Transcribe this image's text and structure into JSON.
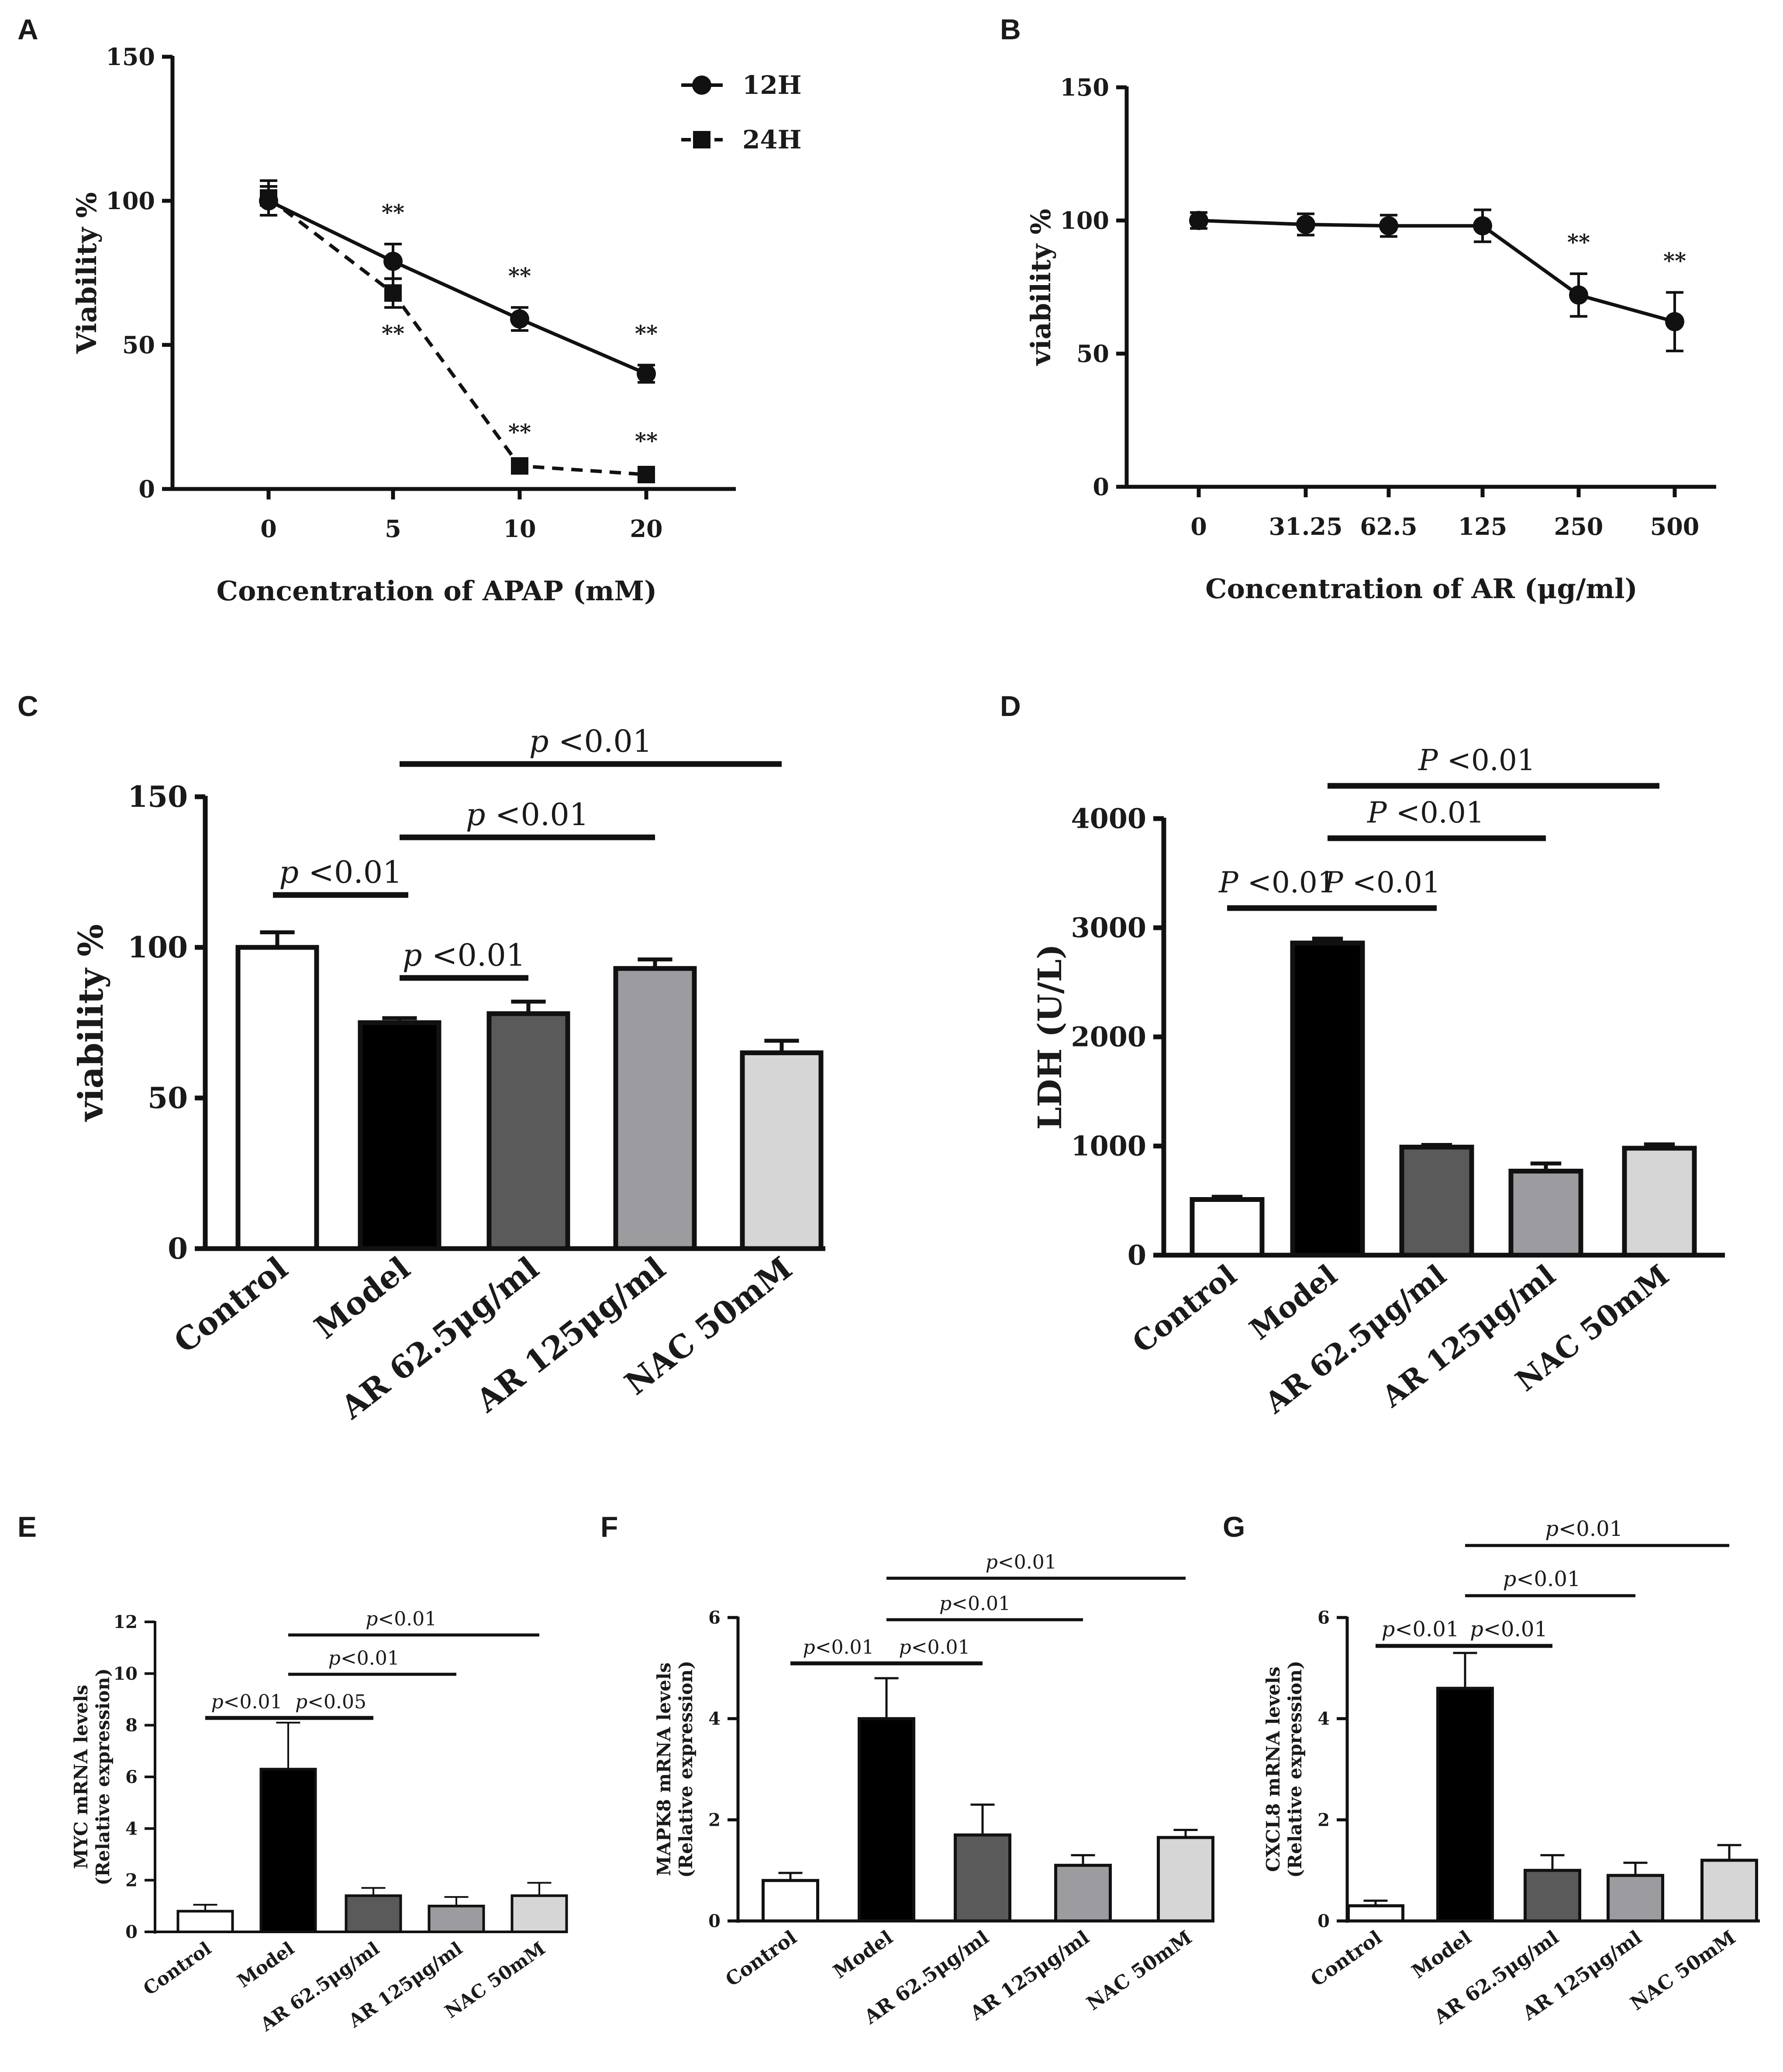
{
  "chart_data": [
    {
      "panel": "A",
      "type": "line",
      "xlabel": "Concentration of APAP (mM)",
      "ylabel": "Viability %",
      "categories": [
        "0",
        "5",
        "10",
        "20"
      ],
      "yticks": [
        "0",
        "50",
        "100",
        "150"
      ],
      "ylim": [
        0,
        150
      ],
      "series": [
        {
          "name": "12H",
          "values": [
            100,
            79,
            59,
            40
          ],
          "errors": [
            5,
            6,
            4,
            3
          ],
          "style": "solid-circle",
          "sig": [
            "",
            "**",
            "**",
            "**"
          ]
        },
        {
          "name": "24H",
          "values": [
            101,
            68,
            8,
            5
          ],
          "errors": [
            6,
            5,
            2,
            2
          ],
          "style": "dashed-square",
          "sig": [
            "",
            "**",
            "**",
            "**"
          ]
        }
      ],
      "legend": "top-right"
    },
    {
      "panel": "B",
      "type": "line",
      "xlabel": "Concentration of AR (μg/ml)",
      "ylabel": "viability %",
      "categories": [
        "0",
        "31.25",
        "62.5",
        "125",
        "250",
        "500"
      ],
      "yticks": [
        "0",
        "50",
        "100",
        "150"
      ],
      "ylim": [
        0,
        150
      ],
      "series": [
        {
          "name": "viability",
          "values": [
            100,
            98.5,
            98,
            98,
            72,
            62
          ],
          "errors": [
            3,
            4,
            4,
            6,
            8,
            11
          ],
          "sig": [
            "",
            "",
            "",
            "",
            "**",
            "**"
          ]
        }
      ]
    },
    {
      "panel": "C",
      "type": "bar",
      "ylabel": "viability %",
      "categories": [
        "Control",
        "Model",
        "AR 62.5μg/ml",
        "AR 125μg/ml",
        "NAC 50mM"
      ],
      "values": [
        100,
        75,
        78,
        93,
        65
      ],
      "errors": [
        5,
        1.5,
        4,
        3,
        4
      ],
      "colors": [
        "#ffffff",
        "#000000",
        "#5a5a5a",
        "#9c9ca0",
        "#d6d6d6"
      ],
      "yticks": [
        "0",
        "50",
        "100",
        "150"
      ],
      "ylim": [
        0,
        150
      ],
      "brackets": [
        {
          "from": 0,
          "to": 1,
          "text": "p <0.01",
          "level": 1
        },
        {
          "from": 1,
          "to": 2,
          "text": "p <0.01",
          "level": 0
        },
        {
          "from": 1,
          "to": 3,
          "text": "p <0.01",
          "level": 2
        },
        {
          "from": 1,
          "to": 4,
          "text": "p <0.01",
          "level": 3
        }
      ]
    },
    {
      "panel": "D",
      "type": "bar",
      "ylabel": "LDH (U/L)",
      "categories": [
        "Control",
        "Model",
        "AR 62.5μg/ml",
        "AR 125μg/ml",
        "NAC 50mM"
      ],
      "values": [
        510,
        2860,
        990,
        770,
        980
      ],
      "errors": [
        25,
        40,
        20,
        70,
        35
      ],
      "colors": [
        "#ffffff",
        "#000000",
        "#5a5a5a",
        "#9c9ca0",
        "#d6d6d6"
      ],
      "yticks": [
        "0",
        "1000",
        "2000",
        "3000",
        "4000"
      ],
      "ylim": [
        0,
        4000
      ],
      "brackets": [
        {
          "from": 0,
          "to": 1,
          "text": "P <0.01",
          "level": 0
        },
        {
          "from": 1,
          "to": 2,
          "text": "P <0.01",
          "level": 0
        },
        {
          "from": 1,
          "to": 3,
          "text": "P <0.01",
          "level": 1
        },
        {
          "from": 1,
          "to": 4,
          "text": "P <0.01",
          "level": 2
        }
      ]
    },
    {
      "panel": "E",
      "type": "bar",
      "ylabel": "MYC mRNA levels",
      "ylabel2": "(Relative expression)",
      "categories": [
        "Control",
        "Model",
        "AR 62.5μg/ml",
        "AR 125μg/ml",
        "NAC 50mM"
      ],
      "values": [
        0.8,
        6.3,
        1.4,
        1.0,
        1.4
      ],
      "errors": [
        0.25,
        1.8,
        0.3,
        0.35,
        0.5
      ],
      "colors": [
        "#ffffff",
        "#000000",
        "#5a5a5a",
        "#9c9ca0",
        "#d6d6d6"
      ],
      "yticks": [
        "0",
        "2",
        "4",
        "6",
        "8",
        "10",
        "12"
      ],
      "ylim": [
        0,
        12
      ],
      "brackets": [
        {
          "from": 0,
          "to": 1,
          "text": "p<0.01",
          "level": 0
        },
        {
          "from": 1,
          "to": 2,
          "text": "p<0.05",
          "level": 0
        },
        {
          "from": 1,
          "to": 3,
          "text": "p<0.01",
          "level": 1
        },
        {
          "from": 1,
          "to": 4,
          "text": "p<0.01",
          "level": 2
        }
      ]
    },
    {
      "panel": "F",
      "type": "bar",
      "ylabel": "MAPK8 mRNA levels",
      "ylabel2": "(Relative expression)",
      "categories": [
        "Control",
        "Model",
        "AR 62.5μg/ml",
        "AR 125μg/ml",
        "NAC 50mM"
      ],
      "values": [
        0.8,
        4.0,
        1.7,
        1.1,
        1.65
      ],
      "errors": [
        0.15,
        0.8,
        0.6,
        0.2,
        0.15
      ],
      "colors": [
        "#ffffff",
        "#000000",
        "#5a5a5a",
        "#9c9ca0",
        "#d6d6d6"
      ],
      "yticks": [
        "0",
        "2",
        "4",
        "6"
      ],
      "ylim": [
        0,
        6
      ],
      "brackets": [
        {
          "from": 0,
          "to": 1,
          "text": "p<0.01",
          "level": 0
        },
        {
          "from": 1,
          "to": 2,
          "text": "p<0.01",
          "level": 0
        },
        {
          "from": 1,
          "to": 3,
          "text": "p<0.01",
          "level": 1
        },
        {
          "from": 1,
          "to": 4,
          "text": "p<0.01",
          "level": 2
        }
      ]
    },
    {
      "panel": "G",
      "type": "bar",
      "ylabel": "CXCL8 mRNA levels",
      "ylabel2": "(Relative expression)",
      "categories": [
        "Control",
        "Model",
        "AR 62.5μg/ml",
        "AR 125μg/ml",
        "NAC 50mM"
      ],
      "values": [
        0.3,
        4.6,
        1.0,
        0.9,
        1.2
      ],
      "errors": [
        0.1,
        0.7,
        0.3,
        0.25,
        0.3
      ],
      "colors": [
        "#ffffff",
        "#000000",
        "#5a5a5a",
        "#9c9ca0",
        "#d6d6d6"
      ],
      "yticks": [
        "0",
        "2",
        "4",
        "6"
      ],
      "ylim": [
        0,
        6
      ],
      "brackets": [
        {
          "from": 0,
          "to": 1,
          "text": "p<0.01",
          "level": 0
        },
        {
          "from": 1,
          "to": 2,
          "text": "p<0.01",
          "level": 0
        },
        {
          "from": 1,
          "to": 3,
          "text": "p<0.01",
          "level": 1
        },
        {
          "from": 1,
          "to": 4,
          "text": "p<0.01",
          "level": 2
        }
      ]
    }
  ]
}
